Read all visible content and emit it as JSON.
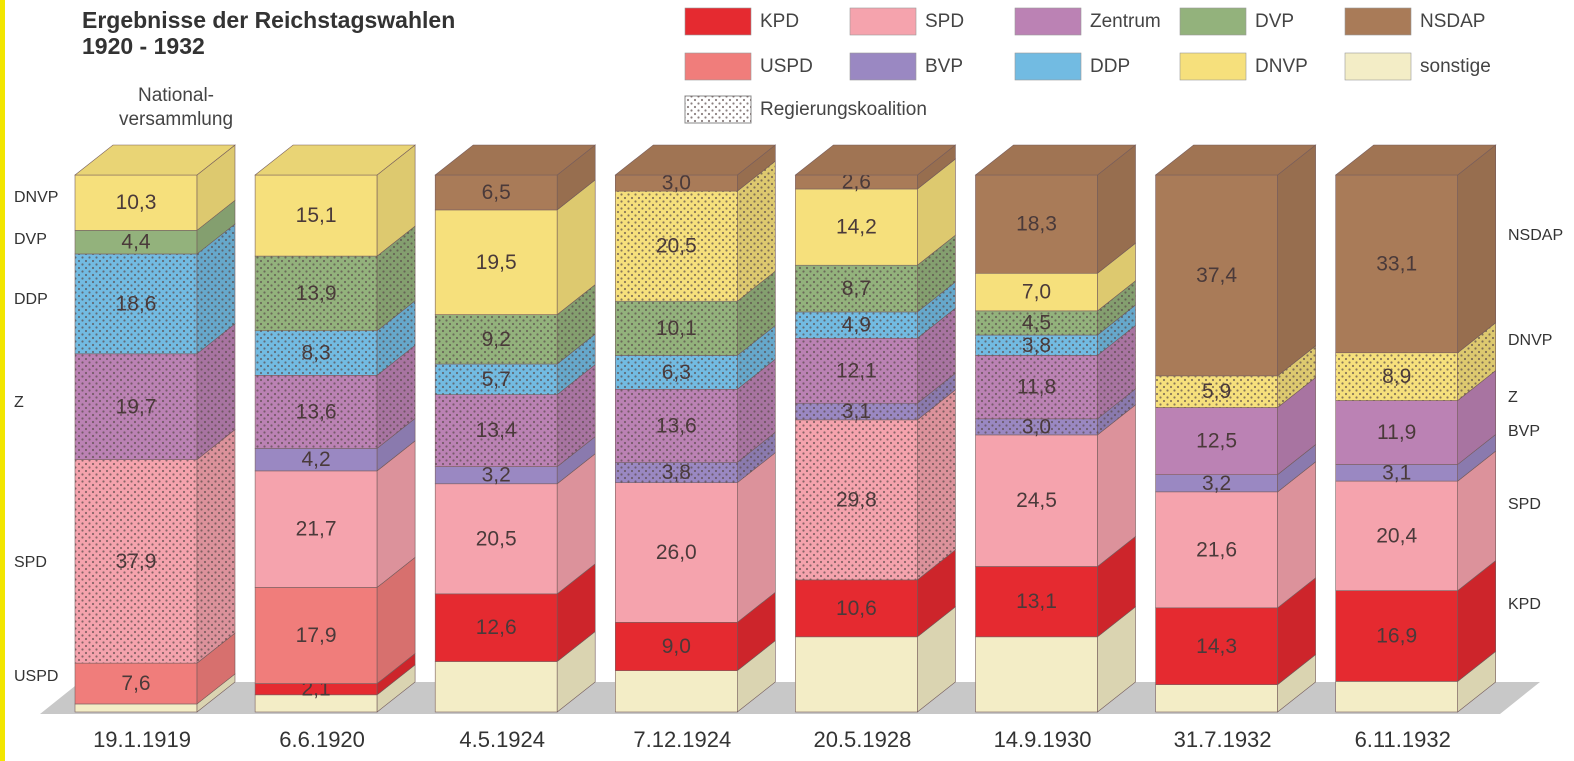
{
  "chart_data": {
    "type": "bar3d-stacked",
    "title": [
      "Ergebnisse der Reichstagswahlen",
      "1920 - 1932"
    ],
    "annotation": [
      "National-",
      "versammlung"
    ],
    "categories": [
      "19.1.1919",
      "6.6.1920",
      "4.5.1924",
      "7.12.1924",
      "20.5.1928",
      "14.9.1930",
      "31.7.1932",
      "6.11.1932"
    ],
    "ylim": [
      0,
      100
    ],
    "coalition_label": "Regierungskoalition",
    "left_labels": [
      "DNVP",
      "DVP",
      "DDP",
      "Z",
      "SPD",
      "USPD"
    ],
    "right_labels": [
      "NSDAP",
      "DNVP",
      "Z",
      "BVP",
      "SPD",
      "KPD"
    ],
    "series": [
      {
        "name": "KPD",
        "color": "#e52a30",
        "values": [
          null,
          2.1,
          12.6,
          9.0,
          10.6,
          13.1,
          14.3,
          16.9
        ],
        "value_labels": [
          null,
          "2,1",
          "12,6",
          "9,0",
          "10,6",
          "13,1",
          "14,3",
          "16,9"
        ],
        "coalition": [
          false,
          false,
          false,
          false,
          false,
          false,
          false,
          false
        ]
      },
      {
        "name": "SPD",
        "color": "#f5a3ad",
        "values": [
          37.9,
          21.7,
          20.5,
          26.0,
          29.8,
          24.5,
          21.6,
          20.4
        ],
        "value_labels": [
          "37,9",
          "21,7",
          "20,5",
          "26,0",
          "29,8",
          "24,5",
          "21,6",
          "20,4"
        ],
        "coalition": [
          true,
          false,
          false,
          false,
          true,
          false,
          false,
          false
        ]
      },
      {
        "name": "Zentrum",
        "color": "#bb82b4",
        "values": [
          19.7,
          13.6,
          13.4,
          13.6,
          12.1,
          11.8,
          12.5,
          11.9
        ],
        "value_labels": [
          "19,7",
          "13,6",
          "13,4",
          "13,6",
          "12,1",
          "11,8",
          "12,5",
          "11,9"
        ],
        "coalition": [
          true,
          true,
          true,
          true,
          true,
          true,
          false,
          false
        ]
      },
      {
        "name": "DVP",
        "color": "#93b27c",
        "values": [
          4.4,
          13.9,
          9.2,
          10.1,
          8.7,
          4.5,
          null,
          null
        ],
        "value_labels": [
          "4,4",
          "13,9",
          "9,2",
          "10,1",
          "8,7",
          "4,5",
          null,
          null
        ],
        "coalition": [
          false,
          true,
          true,
          true,
          true,
          true,
          false,
          false
        ]
      },
      {
        "name": "NSDAP",
        "color": "#a97b58",
        "values": [
          null,
          null,
          6.5,
          3.0,
          2.6,
          18.3,
          37.4,
          33.1
        ],
        "value_labels": [
          null,
          null,
          "6,5",
          "3,0",
          "2,6",
          "18,3",
          "37,4",
          "33,1"
        ],
        "coalition": [
          false,
          false,
          false,
          false,
          false,
          false,
          false,
          false
        ]
      },
      {
        "name": "USPD",
        "color": "#f07d7b",
        "values": [
          7.6,
          17.9,
          null,
          null,
          null,
          null,
          null,
          null
        ],
        "value_labels": [
          "7,6",
          "17,9",
          null,
          null,
          null,
          null,
          null,
          null
        ],
        "coalition": [
          false,
          false,
          false,
          false,
          false,
          false,
          false,
          false
        ]
      },
      {
        "name": "BVP",
        "color": "#9a88c2",
        "values": [
          null,
          4.2,
          3.2,
          3.8,
          3.1,
          3.0,
          3.2,
          3.1
        ],
        "value_labels": [
          null,
          "4,2",
          "3,2",
          "3,8",
          "3,1",
          "3,0",
          "3,2",
          "3,1"
        ],
        "coalition": [
          false,
          false,
          false,
          true,
          true,
          true,
          false,
          false
        ]
      },
      {
        "name": "DDP",
        "color": "#72bbe2",
        "values": [
          18.6,
          8.3,
          5.7,
          6.3,
          4.9,
          3.8,
          null,
          null
        ],
        "value_labels": [
          "18,6",
          "8,3",
          "5,7",
          "6,3",
          "4,9",
          "3,8",
          null,
          null
        ],
        "coalition": [
          true,
          true,
          true,
          true,
          true,
          true,
          false,
          false
        ]
      },
      {
        "name": "DNVP",
        "color": "#f6e07c",
        "values": [
          10.3,
          15.1,
          19.5,
          20.5,
          14.2,
          7.0,
          5.9,
          8.9
        ],
        "value_labels": [
          "10,3",
          "15,1",
          "19,5",
          "20,5",
          "14,2",
          "7,0",
          "5,9",
          "8,9"
        ],
        "coalition": [
          false,
          false,
          false,
          true,
          false,
          false,
          true,
          true
        ]
      },
      {
        "name": "sonstige",
        "color": "#f3edc6",
        "values": [
          1.5,
          3.2,
          9.4,
          7.7,
          14.0,
          14.0,
          5.1,
          5.7
        ],
        "coalition": [
          false,
          false,
          false,
          false,
          false,
          false,
          false,
          false
        ]
      }
    ]
  }
}
